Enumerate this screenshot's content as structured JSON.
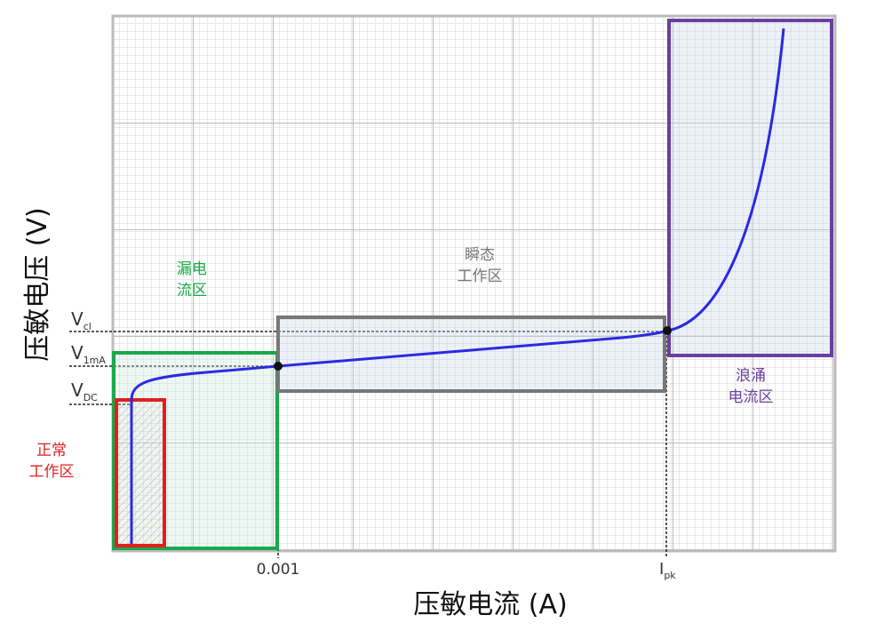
{
  "axes": {
    "y_label": "压敏电压 (V)",
    "x_label": "压敏电流 (A)",
    "x_tick": "0.001",
    "x_tick_ipk": {
      "main": "I",
      "sub": "pk"
    }
  },
  "voltage_labels": [
    {
      "main": "V",
      "sub": "cl"
    },
    {
      "main": "V",
      "sub": "1mA"
    },
    {
      "main": "V",
      "sub": "DC"
    }
  ],
  "regions": [
    {
      "lines": [
        "漏电",
        "流区"
      ]
    },
    {
      "lines": [
        "瞬态",
        "工作区"
      ]
    },
    {
      "lines": [
        "浪涌",
        "电流区"
      ]
    },
    {
      "lines": [
        "正常",
        "工作区"
      ]
    }
  ]
}
